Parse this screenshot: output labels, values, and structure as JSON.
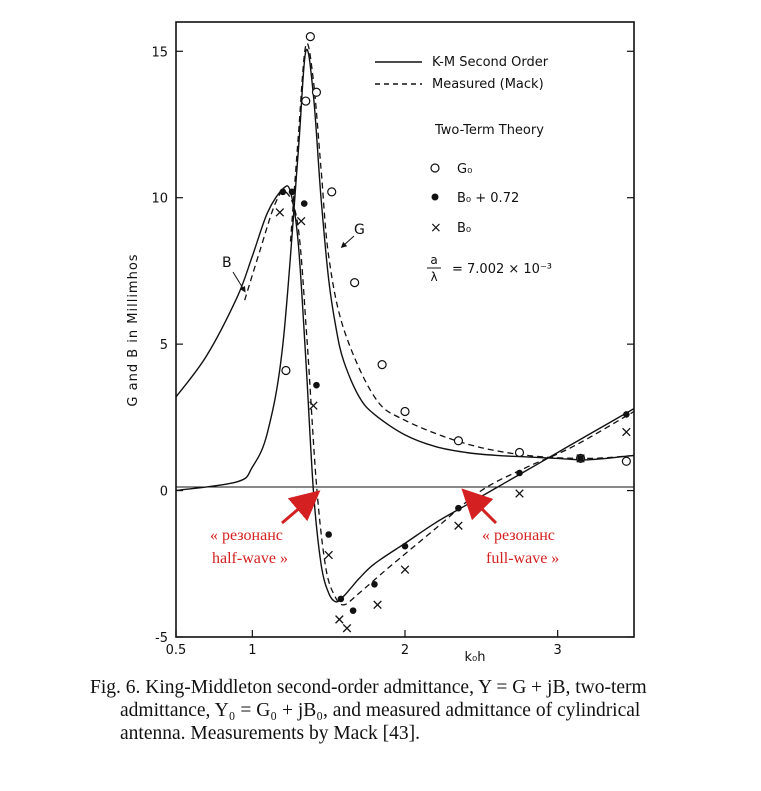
{
  "chart_data": {
    "type": "line",
    "xlabel": "k₀h",
    "ylabel": "G and B in Millimhos",
    "xlim": [
      0.5,
      3.5
    ],
    "ylim": [
      -5,
      16
    ],
    "x_ticks": [
      "0.5",
      "1",
      "2",
      "3"
    ],
    "y_ticks": [
      "-5",
      "0",
      "5",
      "10",
      "15"
    ],
    "legend": {
      "solid_label": "K-M Second Order",
      "dashed_label": "Measured (Mack)",
      "theory_title": "Two-Term Theory",
      "open_label": "G₀",
      "filled_label": "B₀ + 0.72",
      "cross_label": "B₀",
      "ratio_num": "a",
      "ratio_den": "λ",
      "ratio_value": "= 7.002 × 10⁻³"
    },
    "curve_labels": {
      "b": "B",
      "g": "G"
    },
    "series": [
      {
        "name": "K-M Second Order (G)",
        "style": "solid",
        "x": [
          0.5,
          0.9,
          1.0,
          1.1,
          1.2,
          1.3,
          1.35,
          1.4,
          1.45,
          1.5,
          1.55,
          1.6,
          1.7,
          1.8,
          2.0,
          2.2,
          2.4,
          2.6,
          2.8,
          3.0,
          3.2,
          3.5
        ],
        "y": [
          0,
          0.3,
          0.8,
          2.0,
          5.0,
          11.5,
          15.0,
          13.5,
          10.0,
          7.2,
          5.5,
          4.4,
          3.2,
          2.6,
          1.9,
          1.5,
          1.3,
          1.2,
          1.15,
          1.1,
          1.05,
          1.2
        ]
      },
      {
        "name": "K-M Second Order (B)",
        "style": "solid",
        "x": [
          0.5,
          0.7,
          0.9,
          1.0,
          1.1,
          1.2,
          1.25,
          1.3,
          1.35,
          1.4,
          1.45,
          1.5,
          1.55,
          1.6,
          1.65,
          1.7,
          1.8,
          2.0,
          2.2,
          2.4,
          2.6,
          2.8,
          3.0,
          3.2,
          3.5
        ],
        "y": [
          3.2,
          4.6,
          6.6,
          8.0,
          9.5,
          10.3,
          10.2,
          8.5,
          4.5,
          0,
          -2.5,
          -3.5,
          -3.8,
          -3.6,
          -3.3,
          -3.0,
          -2.5,
          -1.8,
          -1.1,
          -0.5,
          0.1,
          0.7,
          1.3,
          1.9,
          2.8
        ]
      },
      {
        "name": "Measured (Mack) G",
        "style": "dashed",
        "x": [
          1.25,
          1.3,
          1.35,
          1.4,
          1.45,
          1.5,
          1.6,
          1.8,
          2.0,
          2.4,
          2.8,
          3.2,
          3.5
        ],
        "y": [
          8.5,
          12.0,
          15.2,
          14.0,
          11.0,
          8.0,
          5.5,
          3.2,
          2.4,
          1.6,
          1.2,
          1.1,
          1.2
        ]
      },
      {
        "name": "Measured (Mack) B",
        "style": "dashed",
        "x": [
          0.95,
          1.05,
          1.15,
          1.22,
          1.3,
          1.36,
          1.42,
          1.48,
          1.54,
          1.6,
          1.7,
          1.9,
          2.2,
          2.5,
          2.8,
          3.1,
          3.5
        ],
        "y": [
          6.5,
          8.2,
          9.8,
          10.2,
          9.0,
          5.0,
          0.2,
          -2.6,
          -3.6,
          -3.9,
          -3.5,
          -2.6,
          -1.3,
          0.0,
          0.8,
          1.5,
          2.7
        ]
      }
    ],
    "markers": {
      "G0": {
        "x": [
          1.22,
          1.35,
          1.38,
          1.42,
          1.52,
          1.67,
          1.85,
          2.0,
          2.35,
          2.75,
          3.15,
          3.45
        ],
        "y": [
          4.1,
          13.3,
          15.5,
          13.6,
          10.2,
          7.1,
          4.3,
          2.7,
          1.7,
          1.3,
          1.1,
          1.0
        ]
      },
      "B0_plus": {
        "x": [
          1.2,
          1.26,
          1.34,
          1.42,
          1.5,
          1.58,
          1.66,
          1.8,
          2.0,
          2.35,
          2.75,
          3.15,
          3.45
        ],
        "y": [
          10.2,
          10.2,
          9.8,
          3.6,
          -1.5,
          -3.7,
          -4.1,
          -3.2,
          -1.9,
          -0.6,
          0.6,
          1.1,
          2.6
        ]
      },
      "B0": {
        "x": [
          1.18,
          1.32,
          1.4,
          1.5,
          1.57,
          1.62,
          1.82,
          2.0,
          2.35,
          2.75,
          3.15,
          3.45
        ],
        "y": [
          9.5,
          9.2,
          2.9,
          -2.2,
          -4.4,
          -4.7,
          -3.9,
          -2.7,
          -1.2,
          -0.1,
          1.1,
          2.0
        ]
      }
    }
  },
  "annotations": {
    "half_wave": [
      "« резонанс",
      "half-wave »"
    ],
    "full_wave": [
      "« резонанс",
      "full-wave »"
    ]
  },
  "caption": {
    "line1": "Fig. 6.   King-Middleton second-order admittance, Y = G + jB, two-term",
    "line2": "admittance,  Y₀ = G₀ + jB₀,  and measured admittance of cylindrical",
    "line3": "antenna. Measurements by Mack [43]."
  }
}
